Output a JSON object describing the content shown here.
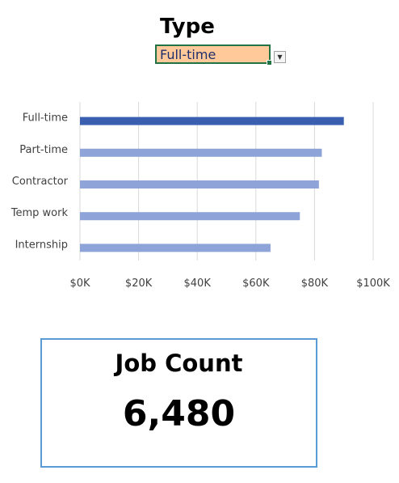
{
  "filter": {
    "title": "Type",
    "selected_value": "Full-time",
    "dropdown_icon": "chevron-down-icon"
  },
  "chart_data": {
    "type": "bar",
    "orientation": "horizontal",
    "categories": [
      "Full-time",
      "Part-time",
      "Contractor",
      "Temp work",
      "Internship"
    ],
    "values": [
      90000,
      82500,
      81500,
      75000,
      65000
    ],
    "highlighted_category": "Full-time",
    "xlim": [
      0,
      100000
    ],
    "xticks": [
      0,
      20000,
      40000,
      60000,
      80000,
      100000
    ],
    "xtick_labels": [
      "$0K",
      "$20K",
      "$40K",
      "$60K",
      "$80K",
      "$100K"
    ],
    "grid": true,
    "title": "",
    "xlabel": "",
    "ylabel": "",
    "colors": {
      "highlight": "#3a5fb0",
      "default": "#8ea4d8",
      "grid": "#d9d9d9",
      "text": "#404040"
    }
  },
  "job_count": {
    "label": "Job Count",
    "value": "6,480"
  }
}
